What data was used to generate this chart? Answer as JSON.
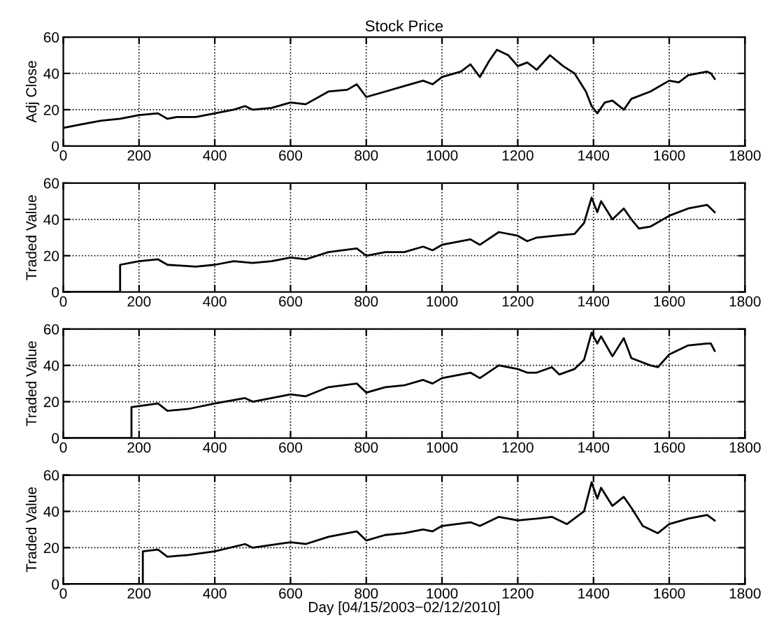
{
  "chart_data": [
    {
      "type": "line",
      "title": "Stock Price",
      "ylabel": "Adj Close",
      "xlim": [
        0,
        1800
      ],
      "ylim": [
        0,
        60
      ],
      "xticks": [
        0,
        200,
        400,
        600,
        800,
        1000,
        1200,
        1400,
        1600,
        1800
      ],
      "yticks": [
        0,
        20,
        40,
        60
      ],
      "grid": true,
      "marker": "none",
      "line_style": "solid",
      "series": [
        {
          "color": "#000000",
          "x": [
            0,
            50,
            100,
            150,
            200,
            250,
            275,
            300,
            350,
            400,
            450,
            480,
            500,
            550,
            600,
            640,
            700,
            750,
            775,
            800,
            850,
            900,
            950,
            975,
            1000,
            1050,
            1075,
            1100,
            1125,
            1145,
            1175,
            1200,
            1225,
            1250,
            1285,
            1320,
            1350,
            1380,
            1395,
            1410,
            1430,
            1450,
            1480,
            1500,
            1550,
            1600,
            1625,
            1650,
            1700,
            1710,
            1720
          ],
          "values": [
            10,
            12,
            14,
            15,
            17,
            18,
            15,
            16,
            16,
            18,
            20,
            22,
            20,
            21,
            24,
            23,
            30,
            31,
            34,
            27,
            30,
            33,
            36,
            34,
            38,
            41,
            45,
            38,
            47,
            53,
            50,
            44,
            46,
            42,
            50,
            44,
            40,
            30,
            22,
            18,
            24,
            25,
            20,
            26,
            30,
            36,
            35,
            39,
            41,
            40,
            37
          ]
        }
      ]
    },
    {
      "type": "line",
      "ylabel": "Traded Value",
      "xlim": [
        0,
        1800
      ],
      "ylim": [
        0,
        60
      ],
      "xticks": [
        0,
        200,
        400,
        600,
        800,
        1000,
        1200,
        1400,
        1600,
        1800
      ],
      "yticks": [
        0,
        20,
        40,
        60
      ],
      "grid": true,
      "marker": "none",
      "line_style": "solid",
      "series": [
        {
          "color": "#000000",
          "x": [
            0,
            150,
            150,
            200,
            250,
            275,
            350,
            400,
            450,
            500,
            550,
            600,
            640,
            700,
            775,
            800,
            850,
            900,
            950,
            975,
            1000,
            1075,
            1100,
            1150,
            1200,
            1225,
            1250,
            1300,
            1350,
            1375,
            1395,
            1410,
            1420,
            1450,
            1480,
            1500,
            1520,
            1550,
            1600,
            1650,
            1700,
            1710,
            1720
          ],
          "values": [
            0,
            0,
            15,
            17,
            18,
            15,
            14,
            15,
            17,
            16,
            17,
            19,
            18,
            22,
            24,
            20,
            22,
            22,
            25,
            23,
            26,
            29,
            26,
            33,
            31,
            28,
            30,
            31,
            32,
            38,
            52,
            44,
            50,
            40,
            46,
            40,
            35,
            36,
            42,
            46,
            48,
            46,
            44
          ]
        }
      ]
    },
    {
      "type": "line",
      "ylabel": "Traded Value",
      "xlim": [
        0,
        1800
      ],
      "ylim": [
        0,
        60
      ],
      "xticks": [
        0,
        200,
        400,
        600,
        800,
        1000,
        1200,
        1400,
        1600,
        1800
      ],
      "yticks": [
        0,
        20,
        40,
        60
      ],
      "grid": true,
      "marker": "none",
      "line_style": "solid",
      "series": [
        {
          "color": "#000000",
          "x": [
            0,
            180,
            180,
            250,
            275,
            330,
            400,
            480,
            500,
            600,
            640,
            700,
            775,
            800,
            850,
            900,
            950,
            975,
            1000,
            1075,
            1100,
            1150,
            1200,
            1225,
            1250,
            1290,
            1310,
            1350,
            1375,
            1395,
            1410,
            1420,
            1450,
            1480,
            1500,
            1550,
            1570,
            1600,
            1650,
            1700,
            1710,
            1720
          ],
          "values": [
            0,
            0,
            17,
            19,
            15,
            16,
            19,
            22,
            20,
            24,
            23,
            28,
            30,
            25,
            28,
            29,
            32,
            30,
            33,
            36,
            33,
            40,
            38,
            36,
            36,
            39,
            35,
            38,
            43,
            58,
            52,
            56,
            45,
            55,
            44,
            40,
            39,
            46,
            51,
            52,
            52,
            48
          ]
        }
      ]
    },
    {
      "type": "line",
      "ylabel": "Traded Value",
      "xlabel": "Day [04/15/2003−02/12/2010]",
      "xlim": [
        0,
        1800
      ],
      "ylim": [
        0,
        60
      ],
      "xticks": [
        0,
        200,
        400,
        600,
        800,
        1000,
        1200,
        1400,
        1600,
        1800
      ],
      "yticks": [
        0,
        20,
        40,
        60
      ],
      "grid": true,
      "marker": "none",
      "line_style": "solid",
      "series": [
        {
          "color": "#000000",
          "x": [
            0,
            210,
            210,
            250,
            275,
            330,
            400,
            480,
            500,
            600,
            640,
            700,
            775,
            800,
            850,
            900,
            950,
            975,
            1000,
            1075,
            1100,
            1150,
            1200,
            1250,
            1290,
            1330,
            1375,
            1395,
            1410,
            1420,
            1450,
            1480,
            1500,
            1530,
            1570,
            1600,
            1650,
            1700,
            1720
          ],
          "values": [
            0,
            0,
            18,
            19,
            15,
            16,
            18,
            22,
            20,
            23,
            22,
            26,
            29,
            24,
            27,
            28,
            30,
            29,
            32,
            34,
            32,
            37,
            35,
            36,
            37,
            33,
            40,
            56,
            47,
            53,
            43,
            48,
            42,
            32,
            28,
            33,
            36,
            38,
            35
          ]
        }
      ]
    }
  ]
}
